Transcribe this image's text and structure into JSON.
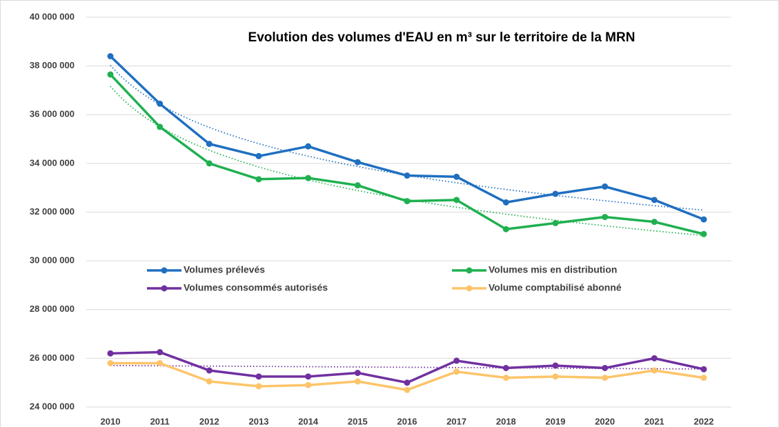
{
  "chart_data": {
    "type": "line",
    "title": "Evolution des volumes d'EAU en m³ sur le territoire de la MRN",
    "categories": [
      "2010",
      "2011",
      "2012",
      "2013",
      "2014",
      "2015",
      "2016",
      "2017",
      "2018",
      "2019",
      "2020",
      "2021",
      "2022"
    ],
    "series": [
      {
        "name": "Volumes prélevés",
        "color": "#1f6fc0",
        "trendline": "log",
        "values": [
          38400000,
          36450000,
          34800000,
          34300000,
          34700000,
          34050000,
          33500000,
          33450000,
          32400000,
          32750000,
          33050000,
          32500000,
          31700000
        ]
      },
      {
        "name": "Volumes mis en distribution",
        "color": "#1fb050",
        "trendline": "log",
        "values": [
          37650000,
          35500000,
          34000000,
          33350000,
          33400000,
          33100000,
          32450000,
          32500000,
          31300000,
          31550000,
          31800000,
          31600000,
          31100000
        ]
      },
      {
        "name": "Volumes consommés autorisés",
        "color": "#7030a0",
        "trendline": "linear",
        "values": [
          26200000,
          26250000,
          25500000,
          25250000,
          25250000,
          25400000,
          25000000,
          25900000,
          25600000,
          25700000,
          25600000,
          26000000,
          25550000
        ]
      },
      {
        "name": "Volume comptabilisé abonné",
        "color": "#fdc46a",
        "values": [
          25800000,
          25800000,
          25050000,
          24850000,
          24900000,
          25050000,
          24700000,
          25450000,
          25200000,
          25250000,
          25200000,
          25500000,
          25200000
        ]
      }
    ],
    "ylim": [
      24000000,
      40000000
    ],
    "yticks": [
      {
        "value": 24000000,
        "label": "24 000 000"
      },
      {
        "value": 26000000,
        "label": "26 000 000"
      },
      {
        "value": 28000000,
        "label": "28 000 000"
      },
      {
        "value": 30000000,
        "label": "30 000 000"
      },
      {
        "value": 32000000,
        "label": "32 000 000"
      },
      {
        "value": 34000000,
        "label": "34 000 000"
      },
      {
        "value": 36000000,
        "label": "36 000 000"
      },
      {
        "value": 38000000,
        "label": "38 000 000"
      },
      {
        "value": 40000000,
        "label": "40 000 000"
      }
    ],
    "grid": true
  }
}
